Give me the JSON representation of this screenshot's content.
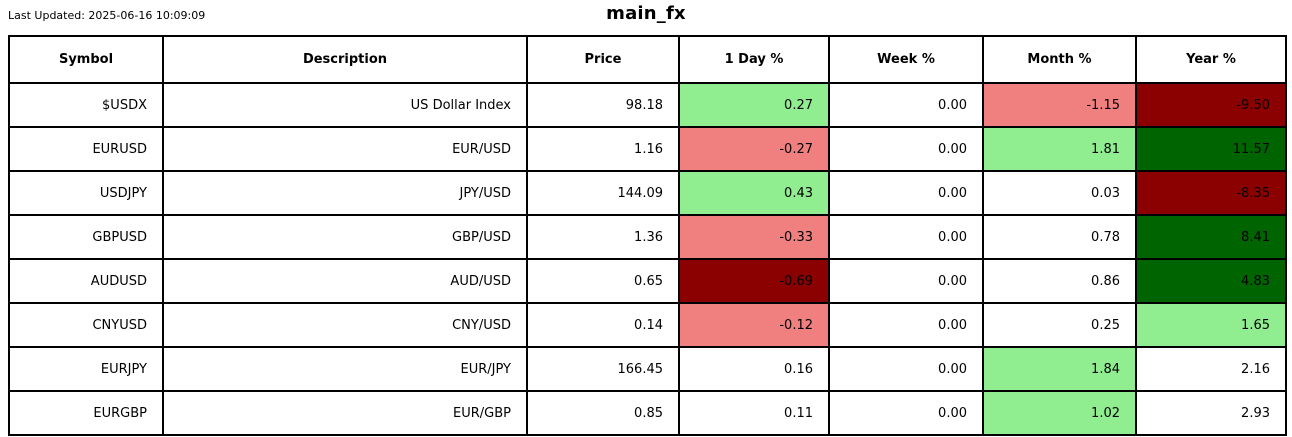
{
  "meta": {
    "last_updated": "Last Updated: 2025-06-16 10:09:09",
    "title": "main_fx"
  },
  "colors": {
    "up_light": "#90EE90",
    "up_dark": "#006400",
    "down_light": "#F08080",
    "down_dark": "#8B0000",
    "neutral": "#FFFFFF",
    "border": "#000000",
    "text": "#000000"
  },
  "chart_data": {
    "type": "table",
    "title": "main_fx",
    "last_updated": "2025-06-16 10:09:09",
    "columns": [
      "Symbol",
      "Description",
      "Price",
      "1 Day %",
      "Week %",
      "Month %",
      "Year %"
    ],
    "rows": [
      {
        "symbol": "$USDX",
        "description": "US Dollar Index",
        "price": "98.18",
        "day": {
          "value": "0.27",
          "bg": "up_light"
        },
        "week": {
          "value": "0.00",
          "bg": "neutral"
        },
        "month": {
          "value": "-1.15",
          "bg": "down_light"
        },
        "year": {
          "value": "-9.50",
          "bg": "down_dark"
        }
      },
      {
        "symbol": "EURUSD",
        "description": "EUR/USD",
        "price": "1.16",
        "day": {
          "value": "-0.27",
          "bg": "down_light"
        },
        "week": {
          "value": "0.00",
          "bg": "neutral"
        },
        "month": {
          "value": "1.81",
          "bg": "up_light"
        },
        "year": {
          "value": "11.57",
          "bg": "up_dark"
        }
      },
      {
        "symbol": "USDJPY",
        "description": "JPY/USD",
        "price": "144.09",
        "day": {
          "value": "0.43",
          "bg": "up_light"
        },
        "week": {
          "value": "0.00",
          "bg": "neutral"
        },
        "month": {
          "value": "0.03",
          "bg": "neutral"
        },
        "year": {
          "value": "-8.35",
          "bg": "down_dark"
        }
      },
      {
        "symbol": "GBPUSD",
        "description": "GBP/USD",
        "price": "1.36",
        "day": {
          "value": "-0.33",
          "bg": "down_light"
        },
        "week": {
          "value": "0.00",
          "bg": "neutral"
        },
        "month": {
          "value": "0.78",
          "bg": "neutral"
        },
        "year": {
          "value": "8.41",
          "bg": "up_dark"
        }
      },
      {
        "symbol": "AUDUSD",
        "description": "AUD/USD",
        "price": "0.65",
        "day": {
          "value": "-0.69",
          "bg": "down_dark"
        },
        "week": {
          "value": "0.00",
          "bg": "neutral"
        },
        "month": {
          "value": "0.86",
          "bg": "neutral"
        },
        "year": {
          "value": "4.83",
          "bg": "up_dark"
        }
      },
      {
        "symbol": "CNYUSD",
        "description": "CNY/USD",
        "price": "0.14",
        "day": {
          "value": "-0.12",
          "bg": "down_light"
        },
        "week": {
          "value": "0.00",
          "bg": "neutral"
        },
        "month": {
          "value": "0.25",
          "bg": "neutral"
        },
        "year": {
          "value": "1.65",
          "bg": "up_light"
        }
      },
      {
        "symbol": "EURJPY",
        "description": "EUR/JPY",
        "price": "166.45",
        "day": {
          "value": "0.16",
          "bg": "neutral"
        },
        "week": {
          "value": "0.00",
          "bg": "neutral"
        },
        "month": {
          "value": "1.84",
          "bg": "up_light"
        },
        "year": {
          "value": "2.16",
          "bg": "neutral"
        }
      },
      {
        "symbol": "EURGBP",
        "description": "EUR/GBP",
        "price": "0.85",
        "day": {
          "value": "0.11",
          "bg": "neutral"
        },
        "week": {
          "value": "0.00",
          "bg": "neutral"
        },
        "month": {
          "value": "1.02",
          "bg": "up_light"
        },
        "year": {
          "value": "2.93",
          "bg": "neutral"
        }
      }
    ]
  }
}
